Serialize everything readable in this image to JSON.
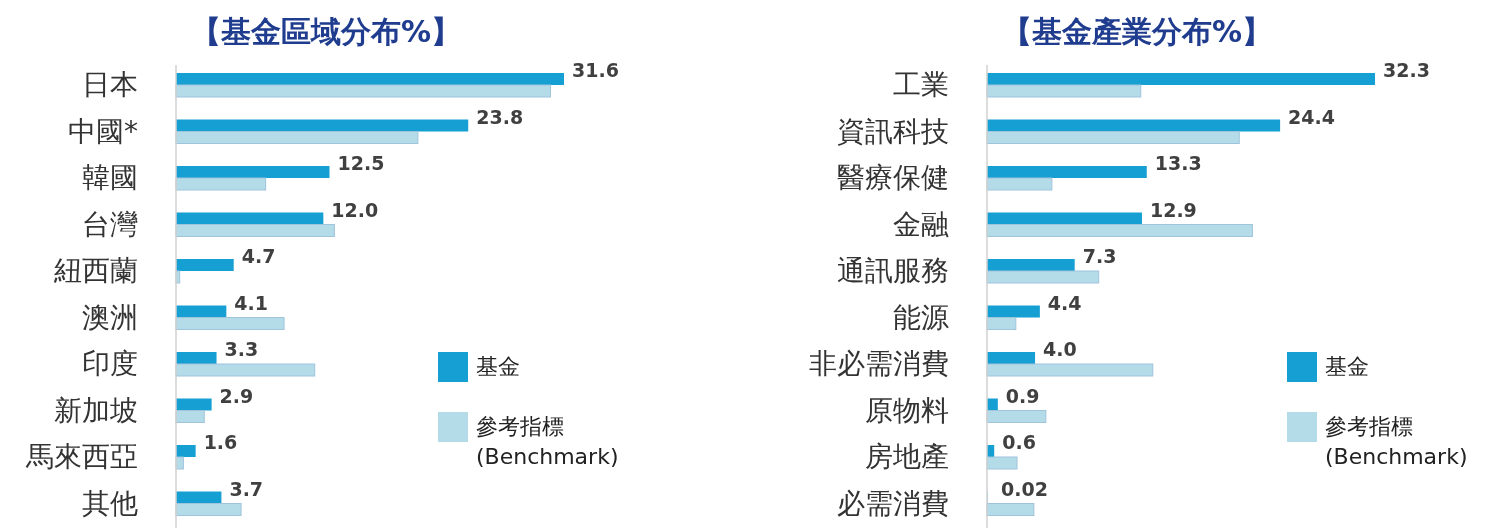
{
  "chart_data": [
    {
      "type": "bar",
      "orientation": "horizontal",
      "title": "【基金區域分布%】",
      "legend": "right",
      "categories": [
        "日本",
        "中國*",
        "韓國",
        "台灣",
        "紐西蘭",
        "澳洲",
        "印度",
        "新加坡",
        "馬來西亞",
        "其他"
      ],
      "series": [
        {
          "name": "基金",
          "color": "#159fd3",
          "values": [
            31.6,
            23.8,
            12.5,
            12.0,
            4.7,
            4.1,
            3.3,
            2.9,
            1.6,
            3.7
          ],
          "value_labels": [
            "31.6",
            "23.8",
            "12.5",
            "12.0",
            "4.7",
            "4.1",
            "3.3",
            "2.9",
            "1.6",
            "3.7"
          ]
        },
        {
          "name": "參考指標 (Benchmark)",
          "color": "#b4dbe8",
          "values": [
            30.5,
            19.7,
            7.3,
            12.9,
            0.3,
            8.8,
            11.3,
            2.3,
            0.6,
            5.3
          ]
        }
      ]
    },
    {
      "type": "bar",
      "orientation": "horizontal",
      "title": "【基金產業分布%】",
      "legend": "right",
      "categories": [
        "工業",
        "資訊科技",
        "醫療保健",
        "金融",
        "通訊服務",
        "能源",
        "非必需消費",
        "原物料",
        "房地產",
        "必需消費"
      ],
      "series": [
        {
          "name": "基金",
          "color": "#159fd3",
          "values": [
            32.3,
            24.4,
            13.3,
            12.9,
            7.3,
            4.4,
            4.0,
            0.9,
            0.6,
            0.02
          ],
          "value_labels": [
            "32.3",
            "24.4",
            "13.3",
            "12.9",
            "7.3",
            "4.4",
            "4.0",
            "0.9",
            "0.6",
            "0.02"
          ]
        },
        {
          "name": "參考指標 (Benchmark)",
          "color": "#b4dbe8",
          "values": [
            12.8,
            21.0,
            5.4,
            22.1,
            9.3,
            2.4,
            13.8,
            4.9,
            2.5,
            3.9
          ]
        }
      ]
    }
  ]
}
